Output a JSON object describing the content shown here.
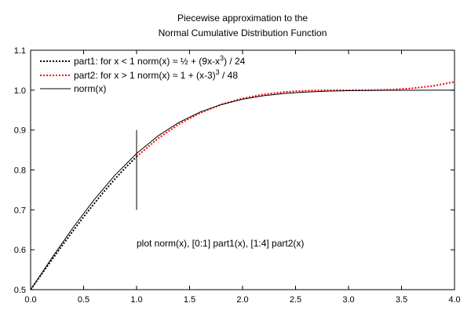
{
  "chart_data": {
    "type": "line",
    "title_line1": "Piecewise approximation to the",
    "title_line2": "Normal Cumulative Distribution Function",
    "xlabel": "",
    "ylabel": "",
    "xlim": [
      0.0,
      4.0
    ],
    "ylim": [
      0.5,
      1.1
    ],
    "x_ticks": [
      "0.0",
      "0.5",
      "1.0",
      "1.5",
      "2.0",
      "2.5",
      "3.0",
      "3.5",
      "4.0"
    ],
    "y_ticks": [
      "0.5",
      "0.6",
      "0.7",
      "0.8",
      "0.9",
      "1.0",
      "1.1"
    ],
    "grid": false,
    "legend_position": "top-left",
    "legend": {
      "part1": {
        "prefix": "part1: for x < 1  norm(x) ≈ ½ + (9x-x",
        "sup": "3",
        "suffix": ") / 24"
      },
      "part2": {
        "prefix": "part2: for x > 1  norm(x) ≈   1 +  (x-3)",
        "sup": "3",
        "suffix": " / 48"
      },
      "norm": {
        "label": "norm(x)"
      }
    },
    "annotation": "plot norm(x),  [0:1] part1(x),  [1:4] part2(x)",
    "vertical_marker": {
      "x": 1.0,
      "y_from": 0.7,
      "y_to": 0.9
    },
    "series": [
      {
        "key": "part1",
        "color": "#000000",
        "style": "dotted",
        "x": [
          0.0,
          0.1,
          0.2,
          0.3,
          0.4,
          0.5,
          0.6,
          0.7,
          0.8,
          0.9,
          1.0
        ],
        "y": [
          0.5,
          0.5375,
          0.5747,
          0.6114,
          0.6473,
          0.6823,
          0.716,
          0.7482,
          0.7787,
          0.8071,
          0.8333
        ]
      },
      {
        "key": "part2",
        "color": "#ff0000",
        "style": "dotted",
        "x": [
          1.0,
          1.2,
          1.4,
          1.6,
          1.8,
          2.0,
          2.2,
          2.4,
          2.6,
          2.8,
          3.0,
          3.2,
          3.4,
          3.6,
          3.8,
          4.0
        ],
        "y": [
          0.8333,
          0.8785,
          0.9147,
          0.9428,
          0.964,
          0.9792,
          0.9893,
          0.9955,
          0.9987,
          0.9998,
          1.0,
          1.0002,
          1.0013,
          1.0045,
          1.0107,
          1.0208
        ]
      },
      {
        "key": "norm",
        "color": "#000000",
        "style": "solid",
        "x": [
          0.0,
          0.2,
          0.4,
          0.6,
          0.8,
          1.0,
          1.2,
          1.4,
          1.6,
          1.8,
          2.0,
          2.2,
          2.4,
          2.6,
          2.8,
          3.0,
          3.2,
          3.4,
          3.6,
          3.8,
          4.0
        ],
        "y": [
          0.5,
          0.5793,
          0.6554,
          0.7257,
          0.7881,
          0.8413,
          0.8849,
          0.9192,
          0.9452,
          0.9641,
          0.9772,
          0.9861,
          0.9918,
          0.9953,
          0.9974,
          0.9987,
          0.9993,
          0.9997,
          0.9998,
          0.9999,
          1.0
        ]
      }
    ]
  }
}
